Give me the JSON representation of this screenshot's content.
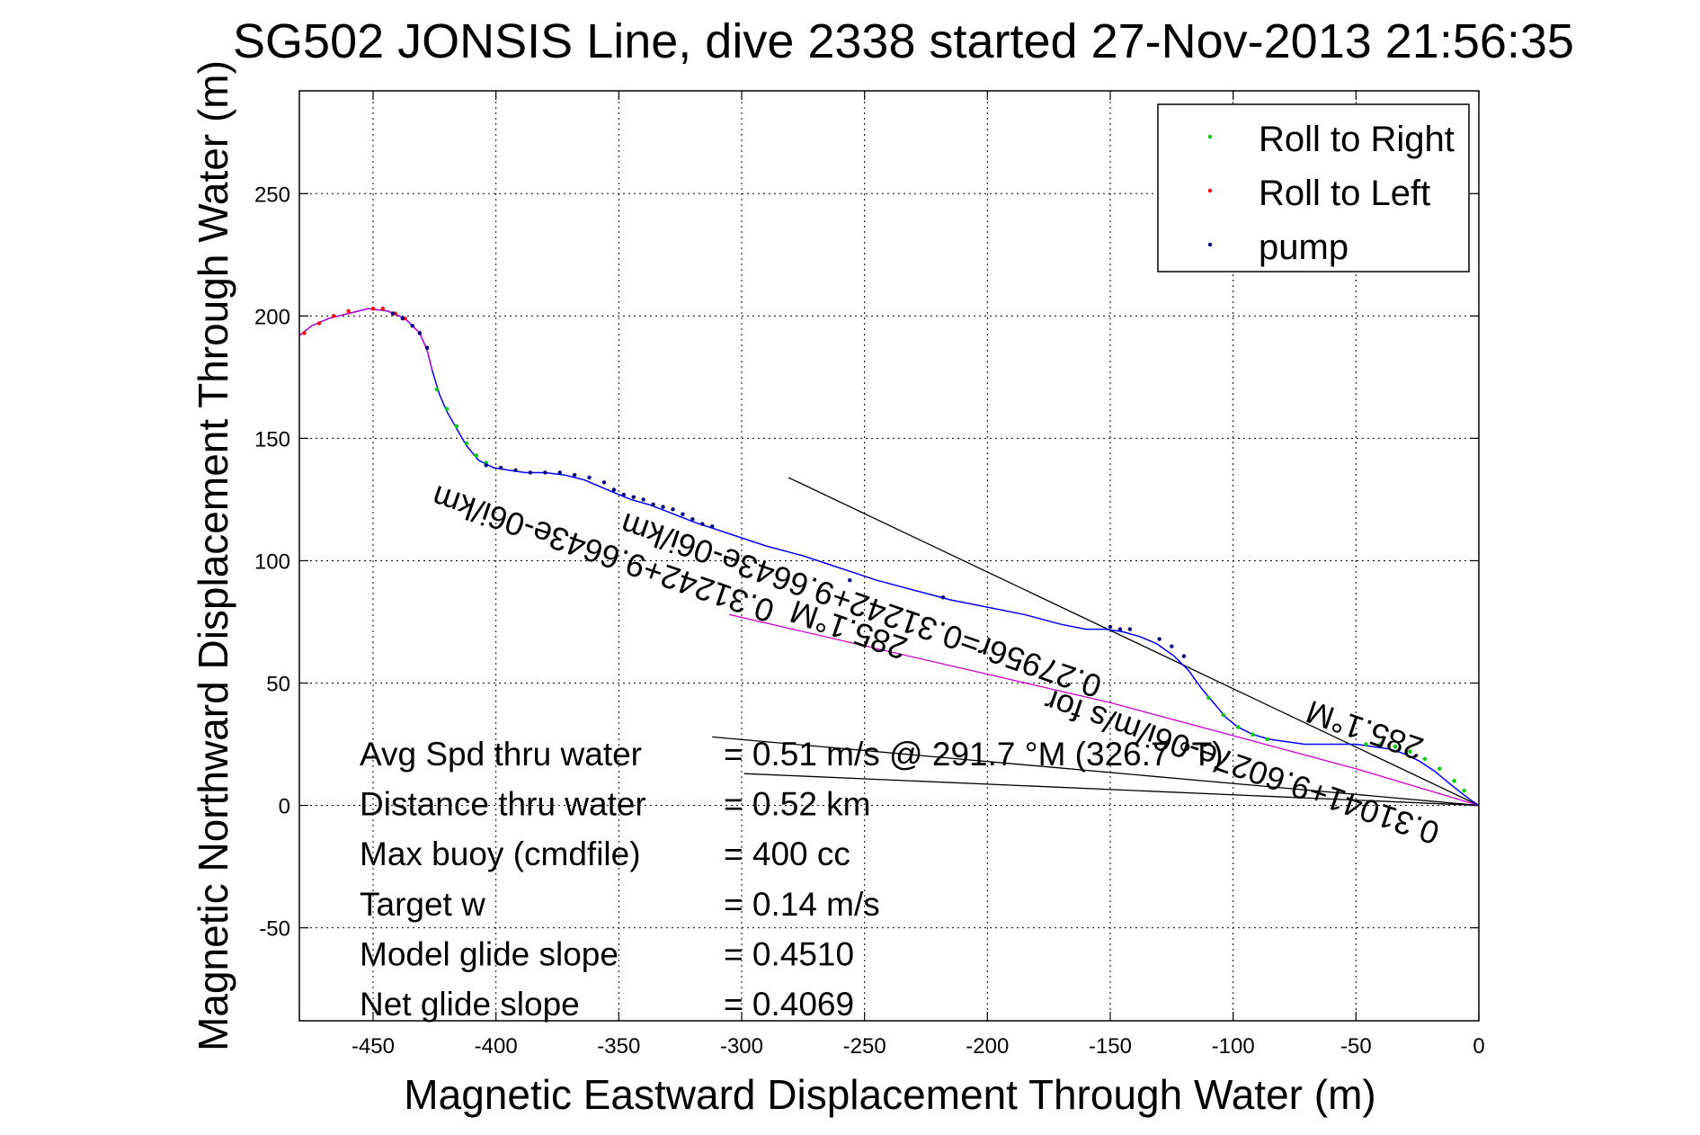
{
  "chart_data": {
    "type": "line",
    "title": "SG502 JONSIS Line, dive 2338 started 27-Nov-2013 21:56:35",
    "xlabel": "Magnetic Eastward Displacement Through Water (m)",
    "ylabel": "Magnetic Northward Displacement Through Water (m)",
    "xlim": [
      -480,
      0
    ],
    "ylim": [
      -88,
      292
    ],
    "xticks": [
      -450,
      -400,
      -350,
      -300,
      -250,
      -200,
      -150,
      -100,
      -50,
      0
    ],
    "yticks": [
      -50,
      0,
      50,
      100,
      150,
      200,
      250
    ],
    "grid": true,
    "legend_position": "top-right",
    "legend": [
      {
        "label": "Roll to Right",
        "color": "#00cc00"
      },
      {
        "label": "Roll to Left",
        "color": "#ff0000"
      },
      {
        "label": "pump",
        "color": "#000080"
      }
    ],
    "track": {
      "name": "track",
      "color": "#0000ff",
      "x": [
        -480,
        -475,
        -468,
        -460,
        -452,
        -444,
        -437,
        -431,
        -428,
        -426,
        -423,
        -420,
        -416,
        -412,
        -407,
        -401,
        -395,
        -388,
        -380,
        -372,
        -364,
        -357,
        -350,
        -345,
        -338,
        -330,
        -320,
        -305,
        -290,
        -275,
        -260,
        -245,
        -230,
        -215,
        -200,
        -185,
        -170,
        -160,
        -152,
        -145,
        -138,
        -131,
        -124,
        -118,
        -113,
        -108,
        -103,
        -98,
        -92,
        -85,
        -78,
        -71,
        -64,
        -57,
        -50,
        -43,
        -36,
        -30,
        -24,
        -18,
        -12,
        -7,
        -3,
        0
      ],
      "y": [
        192,
        196,
        199,
        201,
        203,
        202,
        199,
        193,
        186,
        178,
        168,
        161,
        154,
        147,
        141,
        138,
        137,
        136,
        136,
        135,
        133,
        130,
        127,
        125,
        123,
        120,
        116,
        111,
        106,
        102,
        97,
        92,
        88,
        84,
        81,
        78,
        74,
        72,
        72,
        71,
        69,
        66,
        61,
        55,
        48,
        42,
        36,
        32,
        29,
        27,
        26,
        25,
        25,
        25,
        25,
        24,
        23,
        21,
        18,
        14,
        9,
        5,
        2,
        0
      ]
    },
    "pump_points": {
      "color": "#000080",
      "x": [
        -442,
        -438,
        -434,
        -431,
        -428,
        -404,
        -398,
        -392,
        -386,
        -380,
        -374,
        -368,
        -362,
        -356,
        -352,
        -348,
        -344,
        -340,
        -336,
        -332,
        -328,
        -324,
        -320,
        -316,
        -312,
        -256,
        -218,
        -150,
        -146,
        -142,
        -130,
        -125,
        -120
      ],
      "y": [
        201,
        199,
        196,
        193,
        187,
        139,
        138,
        137,
        136,
        136,
        136,
        135,
        134,
        132,
        129,
        127,
        126,
        125,
        123,
        122,
        121,
        119,
        117,
        115,
        114,
        92,
        85,
        73,
        72,
        72,
        68,
        65,
        61
      ]
    },
    "roll_right_points": {
      "color": "#00cc00",
      "x": [
        -424,
        -420,
        -416,
        -412,
        -408,
        -404,
        -110,
        -104,
        -98,
        -92,
        -86,
        -46,
        -40,
        -34,
        -28,
        -22,
        -16,
        -10,
        -6
      ],
      "y": [
        170,
        162,
        155,
        148,
        143,
        140,
        44,
        37,
        32,
        29,
        27,
        25,
        25,
        24,
        22,
        19,
        15,
        10,
        6
      ]
    },
    "roll_left_points": {
      "color": "#ff0000",
      "x": [
        -478,
        -472,
        -466,
        -460,
        -450,
        -446,
        -441,
        -437
      ],
      "y": [
        193,
        197,
        200,
        202,
        203,
        203,
        201,
        199
      ]
    },
    "reference_lines": [
      {
        "name": "current-direction-line",
        "color": "#000000",
        "x": [
          -281,
          0
        ],
        "y": [
          134,
          0
        ]
      },
      {
        "name": "heading-line-upper",
        "color": "#000000",
        "x": [
          -312,
          0
        ],
        "y": [
          28,
          0
        ]
      },
      {
        "name": "heading-line-lower",
        "color": "#000000",
        "x": [
          -299,
          0
        ],
        "y": [
          13,
          0
        ]
      },
      {
        "name": "model-track-line",
        "color": "#cc00cc",
        "x": [
          -305,
          -150,
          -50,
          0
        ],
        "y": [
          78,
          42,
          15,
          0
        ]
      }
    ],
    "rotated_annotations": [
      {
        "text": "0.31242+9.6643e-06i/km",
        "x": -355,
        "y": 107,
        "angle": 19
      },
      {
        "text": "285.1°M",
        "x": -255,
        "y": 76,
        "angle": 19
      },
      {
        "text": "0.27956r=0.31242+9.6643e-06i/km",
        "x": -250,
        "y": 86,
        "angle": 19
      },
      {
        "text": "0.31041+9.6027e-06i/m/s for",
        "x": -95,
        "y": 20,
        "angle": 19
      },
      {
        "text": "285.1°M",
        "x": -45,
        "y": 35,
        "angle": 19
      }
    ],
    "annotations": [
      {
        "label": "Avg Spd thru water",
        "value": "=  0.51 m/s @ 291.7 °M (326.7 °T)"
      },
      {
        "label": "Distance thru water",
        "value": "=  0.52 km"
      },
      {
        "label": "Max buoy (cmdfile)",
        "value": "= 400 cc"
      },
      {
        "label": "Target w",
        "value": "= 0.14 m/s"
      },
      {
        "label": "Model glide slope",
        "value": "= 0.4510"
      },
      {
        "label": "Net glide slope",
        "value": "= 0.4069"
      }
    ]
  }
}
